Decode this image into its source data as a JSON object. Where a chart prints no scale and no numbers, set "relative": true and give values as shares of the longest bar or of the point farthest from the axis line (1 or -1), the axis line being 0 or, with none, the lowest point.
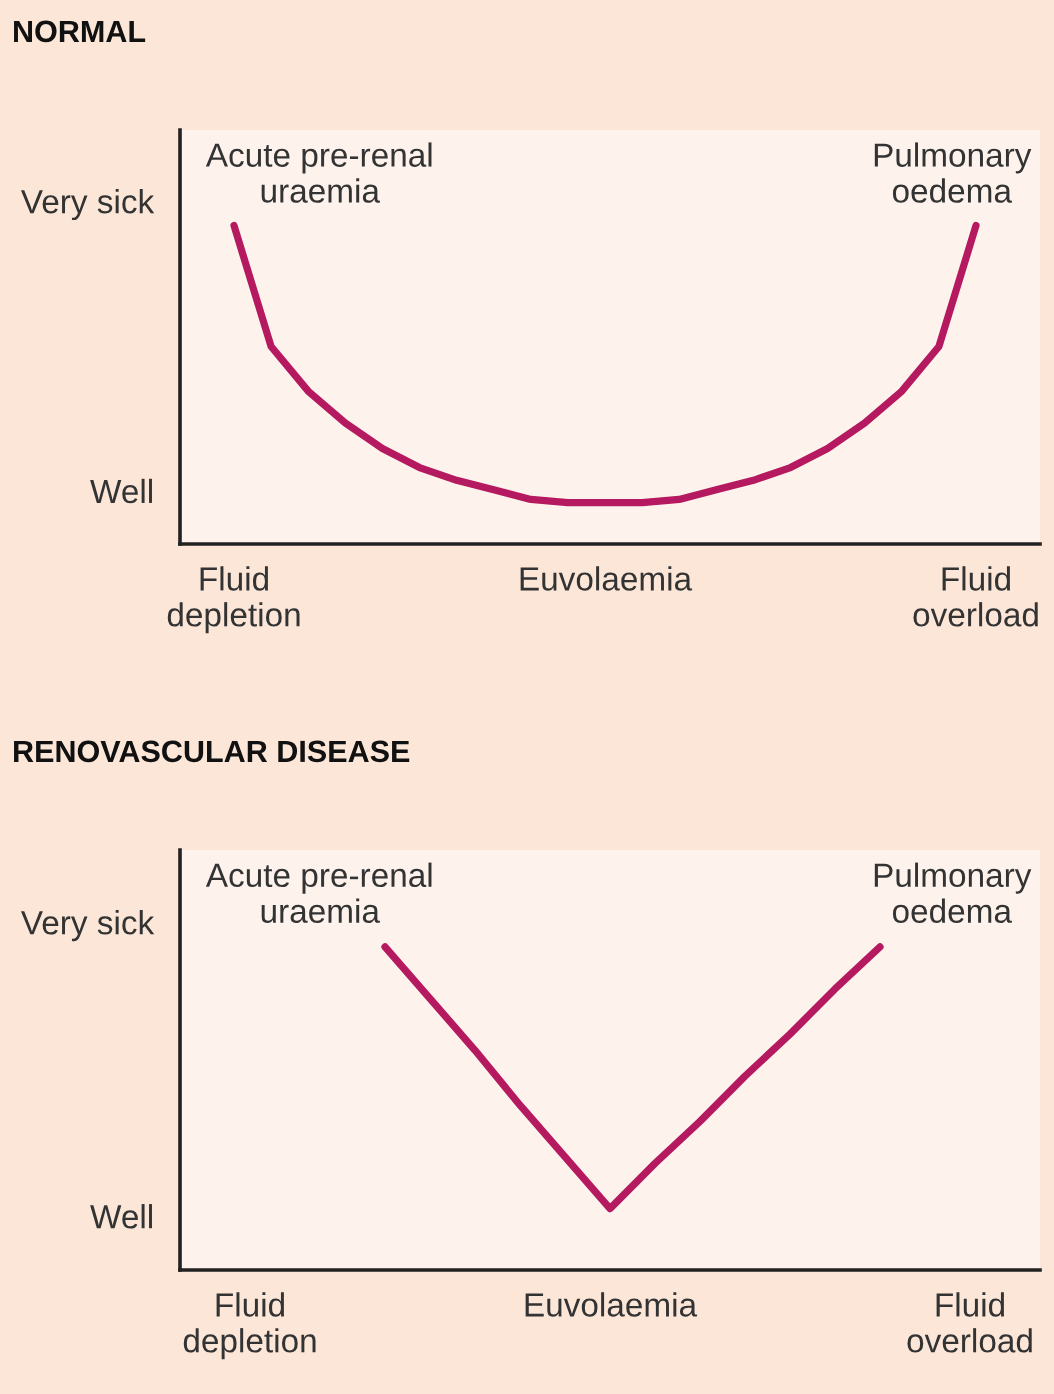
{
  "chart_data": [
    {
      "type": "line",
      "title": "NORMAL",
      "relative": true,
      "categories": [
        "Fluid\ndepletion",
        null,
        null,
        null,
        null,
        null,
        null,
        null,
        null,
        null,
        "Euvolaemia",
        null,
        null,
        null,
        null,
        null,
        null,
        null,
        null,
        null,
        "Fluid\noverload"
      ],
      "series": [
        {
          "color": "#b5195f",
          "values": [
            1,
            0.62,
            0.48,
            0.38,
            0.3,
            0.24,
            0.2,
            0.17,
            0.14,
            0.13,
            0.13,
            0.13,
            0.14,
            0.17,
            0.2,
            0.24,
            0.3,
            0.38,
            0.48,
            0.62,
            1
          ]
        }
      ],
      "annotations": [
        "Very sick",
        "Well",
        "Acute pre-renal\nuraemia",
        "Pulmonary\noedema"
      ],
      "grid": false,
      "marker": "none",
      "line_style": "solid"
    },
    {
      "type": "line",
      "title": "RENOVASCULAR DISEASE",
      "relative": true,
      "categories": [
        "Fluid\ndepletion",
        null,
        null,
        null,
        null,
        null,
        null,
        null,
        "Euvolaemia",
        null,
        null,
        null,
        null,
        null,
        null,
        null,
        "Fluid\noverload"
      ],
      "series": [
        {
          "color": "#b5195f",
          "values": [
            null,
            null,
            null,
            1,
            0.84,
            0.68,
            0.51,
            0.35,
            0.19,
            0.33,
            0.46,
            0.6,
            0.73,
            0.87,
            1,
            null,
            null
          ]
        }
      ],
      "annotations": [
        "Very sick",
        "Well",
        "Acute pre-renal\nuraemia",
        "Pulmonary\noedema"
      ],
      "grid": false,
      "marker": "none",
      "line_style": "solid"
    }
  ]
}
